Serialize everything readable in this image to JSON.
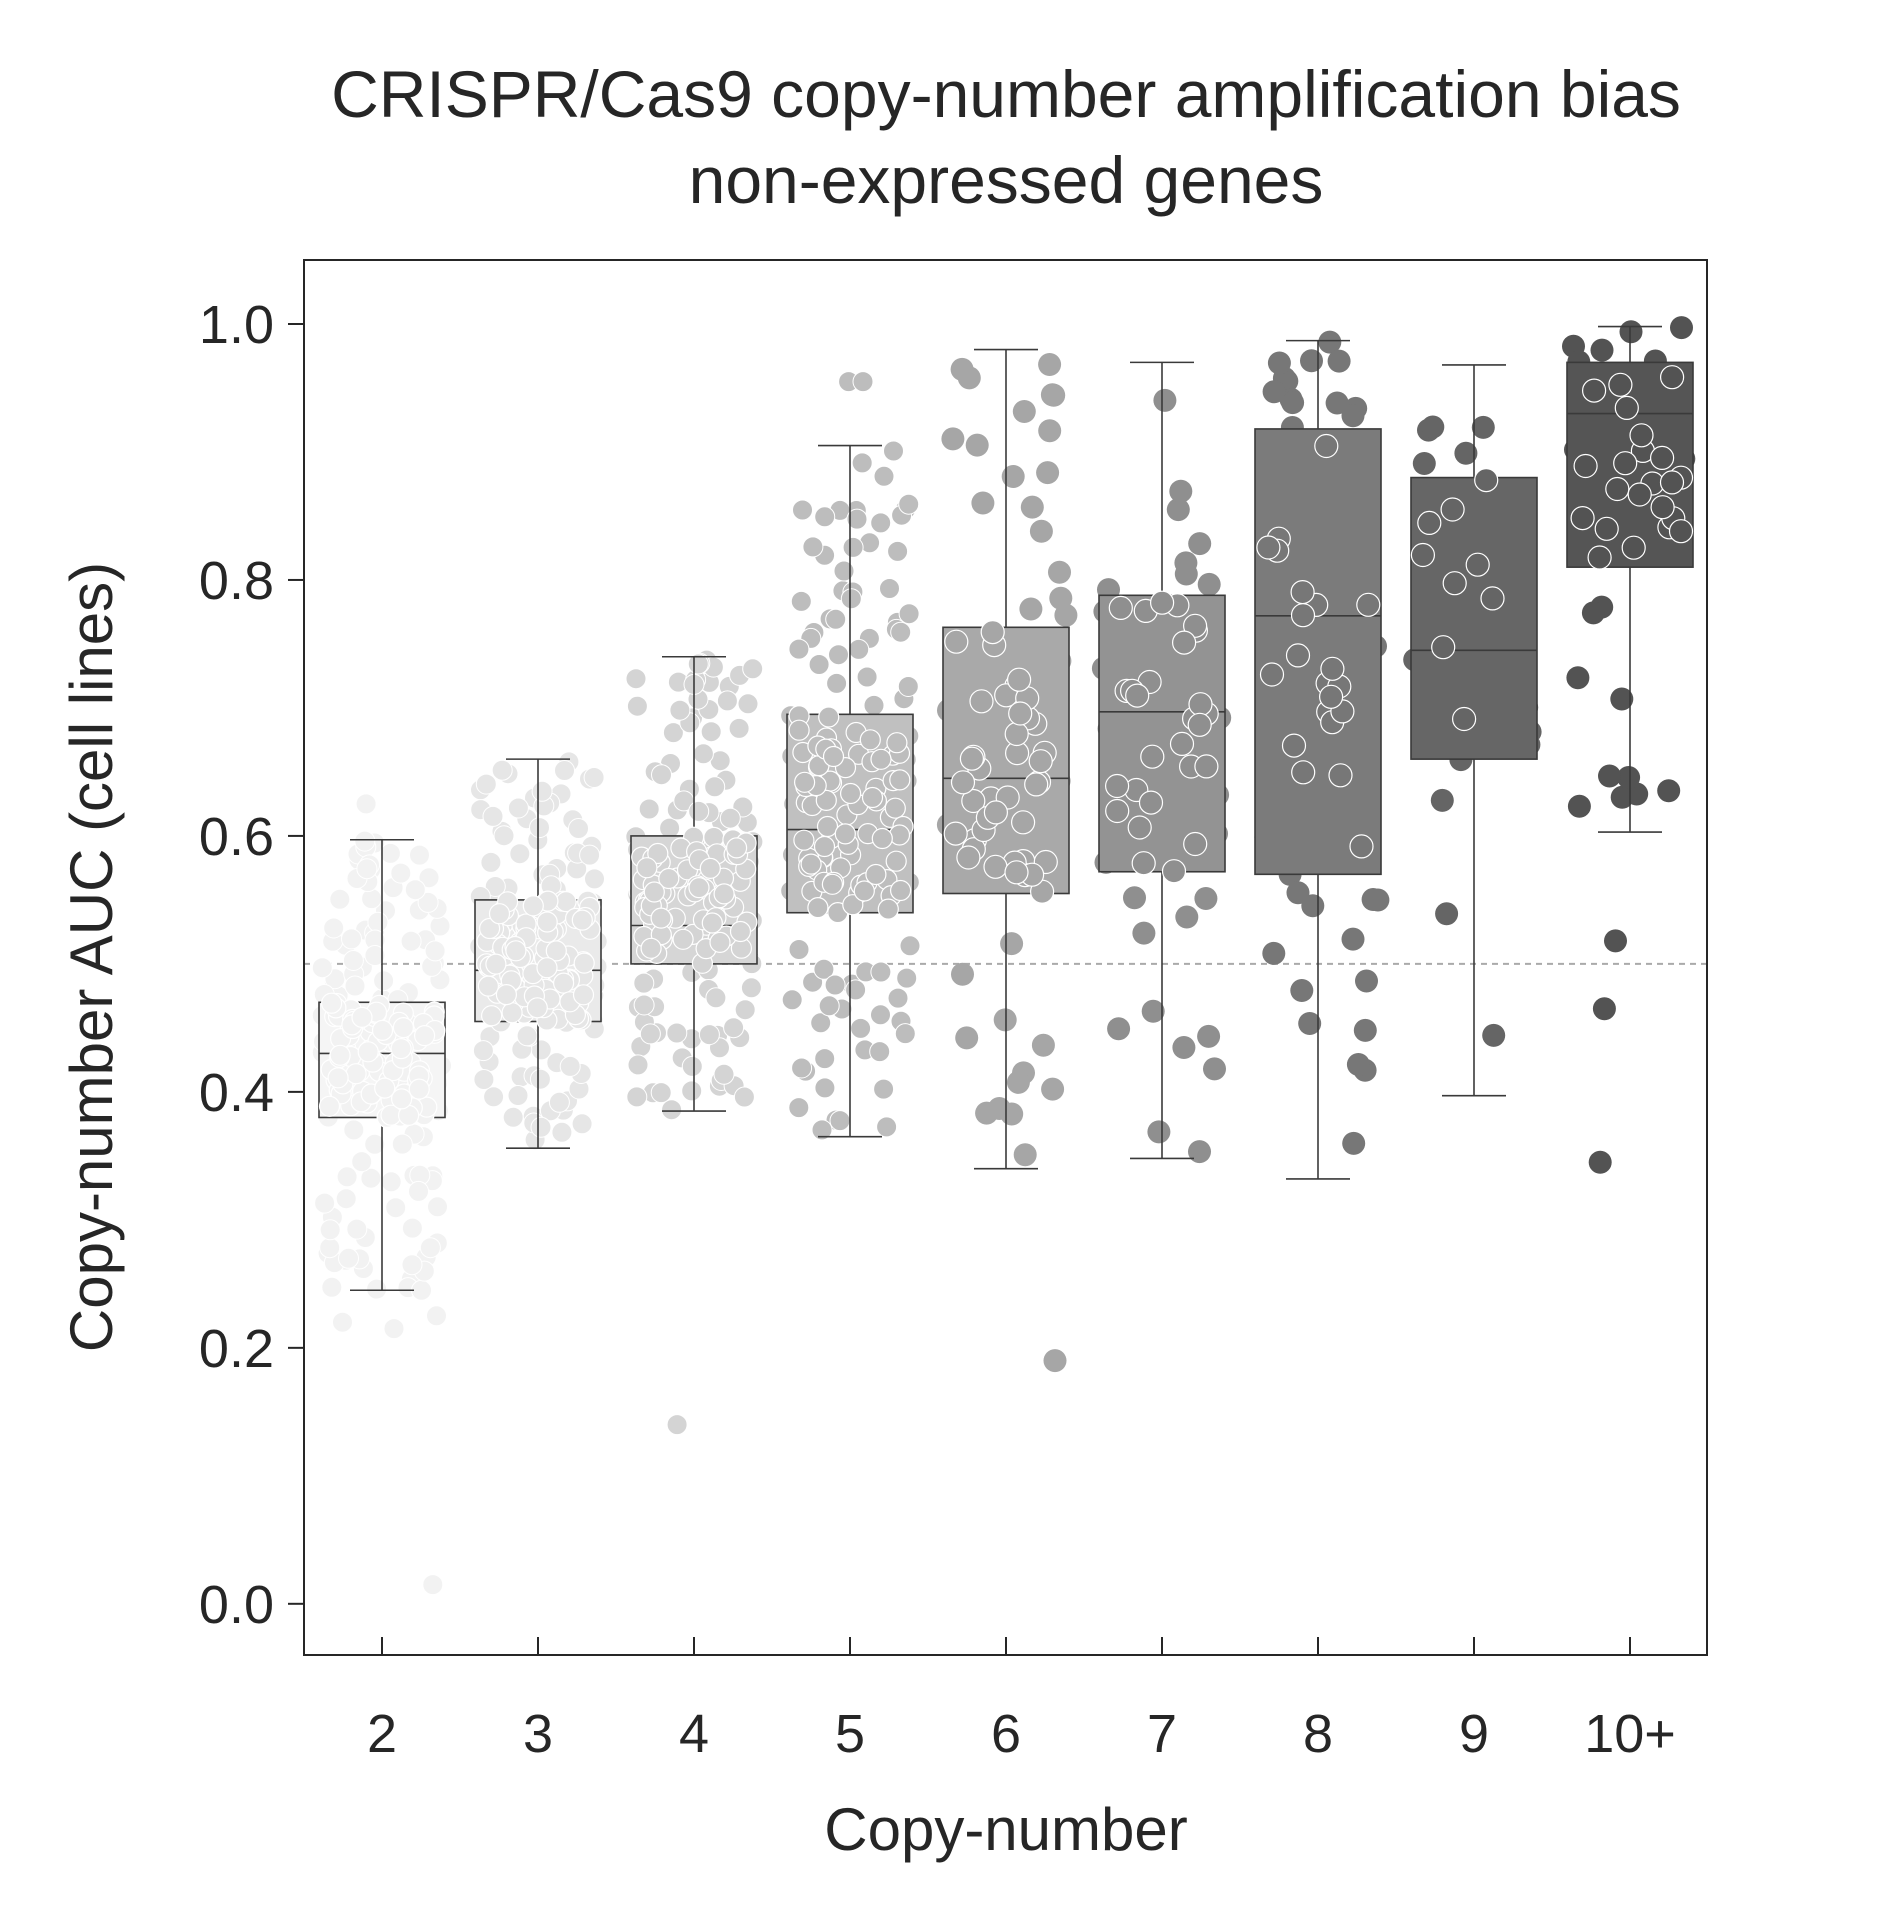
{
  "chart_data": {
    "type": "box",
    "title": "CRISPR/Cas9 copy-number amplification bias",
    "subtitle": "non-expressed genes",
    "xlabel": "Copy-number",
    "ylabel": "Copy-number AUC (cell lines)",
    "ylim": [
      -0.04,
      1.05
    ],
    "yticks": [
      0.0,
      0.2,
      0.4,
      0.6,
      0.8,
      1.0
    ],
    "ytick_labels": [
      "0.0",
      "0.2",
      "0.4",
      "0.6",
      "0.8",
      "1.0"
    ],
    "reference_line": 0.5,
    "grid": false,
    "categories": [
      "2",
      "3",
      "4",
      "5",
      "6",
      "7",
      "8",
      "9",
      "10+"
    ],
    "colors": [
      "#f2f2f2",
      "#e6e6e6",
      "#d4d4d4",
      "#bdbdbd",
      "#a6a6a6",
      "#8f8f8f",
      "#777777",
      "#656565",
      "#535353"
    ],
    "box_fills": [
      "#f5f5f5",
      "#eaeaea",
      "#d6d6d6",
      "#c0c0c0",
      "#a9a9a9",
      "#939393",
      "#7b7b7b",
      "#666666",
      "#555555"
    ],
    "boxes": [
      {
        "category": "2",
        "whisker_low": 0.245,
        "q1": 0.38,
        "median": 0.43,
        "q3": 0.47,
        "whisker_high": 0.597,
        "n_points": 200
      },
      {
        "category": "3",
        "whisker_low": 0.356,
        "q1": 0.455,
        "median": 0.495,
        "q3": 0.55,
        "whisker_high": 0.66,
        "n_points": 180
      },
      {
        "category": "4",
        "whisker_low": 0.385,
        "q1": 0.5,
        "median": 0.53,
        "q3": 0.6,
        "whisker_high": 0.74,
        "n_points": 170
      },
      {
        "category": "5",
        "whisker_low": 0.365,
        "q1": 0.54,
        "median": 0.605,
        "q3": 0.695,
        "whisker_high": 0.905,
        "n_points": 160
      },
      {
        "category": "6",
        "whisker_low": 0.34,
        "q1": 0.555,
        "median": 0.645,
        "q3": 0.763,
        "whisker_high": 0.98,
        "n_points": 75
      },
      {
        "category": "7",
        "whisker_low": 0.348,
        "q1": 0.572,
        "median": 0.697,
        "q3": 0.788,
        "whisker_high": 0.97,
        "n_points": 55
      },
      {
        "category": "8",
        "whisker_low": 0.332,
        "q1": 0.57,
        "median": 0.772,
        "q3": 0.918,
        "whisker_high": 0.987,
        "n_points": 50
      },
      {
        "category": "9",
        "whisker_low": 0.397,
        "q1": 0.66,
        "median": 0.745,
        "q3": 0.88,
        "whisker_high": 0.968,
        "n_points": 22
      },
      {
        "category": "10+",
        "whisker_low": 0.603,
        "q1": 0.81,
        "median": 0.93,
        "q3": 0.97,
        "whisker_high": 0.998,
        "n_points": 40
      }
    ],
    "outliers": [
      {
        "category": "2",
        "values": [
          0.015,
          0.22,
          0.215,
          0.225,
          0.245,
          0.26,
          0.265,
          0.27,
          0.625
        ]
      },
      {
        "category": "4",
        "values": [
          0.14
        ]
      },
      {
        "category": "5",
        "values": [
          0.955,
          0.955
        ]
      },
      {
        "category": "6",
        "values": [
          0.19
        ]
      },
      {
        "category": "10+",
        "values": [
          0.345,
          0.465,
          0.518
        ]
      }
    ]
  }
}
